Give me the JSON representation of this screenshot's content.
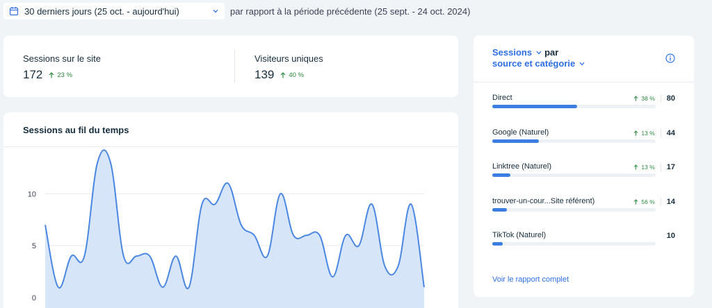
{
  "date_range": {
    "label": "30 derniers jours (25 oct. - aujourd'hui)",
    "comparison": "par rapport à la période précédente (25 sept. - 24 oct. 2024)"
  },
  "kpis": [
    {
      "title": "Sessions sur le site",
      "value": "172",
      "delta": "23 %"
    },
    {
      "title": "Visiteurs uniques",
      "value": "139",
      "delta": "40 %"
    }
  ],
  "colors": {
    "accent": "#2f6fe4",
    "positive": "#2a8a3e",
    "line": "#4a87e3",
    "area": "#d7e5f9"
  },
  "chart_data": {
    "type": "area",
    "title": "Sessions au fil du temps",
    "xlabel": "",
    "ylabel": "",
    "y_ticks": [
      "0",
      "5",
      "10"
    ],
    "ylim": [
      0,
      14.5
    ],
    "grid": true,
    "values": [
      7,
      1,
      4,
      4,
      13,
      13,
      4,
      4,
      4,
      1,
      4,
      1,
      9,
      9,
      11,
      7,
      6,
      4,
      10,
      6,
      6,
      6,
      2,
      6,
      5,
      9,
      3,
      3,
      9,
      1
    ]
  },
  "sources": {
    "metric_label": "Sessions",
    "par": "par",
    "dimension_label": "source et catégorie",
    "items": [
      {
        "name": "Direct",
        "delta": "38 %",
        "count": "80",
        "value": 80
      },
      {
        "name": "Google (Naturel)",
        "delta": "13 %",
        "count": "44",
        "value": 44
      },
      {
        "name": "Linktree (Naturel)",
        "delta": "13 %",
        "count": "17",
        "value": 17
      },
      {
        "name": "trouver-un-cour...Site référent)",
        "delta": "56 %",
        "count": "14",
        "value": 14
      },
      {
        "name": "TikTok (Naturel)",
        "delta": "",
        "count": "10",
        "value": 10
      }
    ],
    "max_value": 154,
    "report_link": "Voir le rapport complet"
  }
}
